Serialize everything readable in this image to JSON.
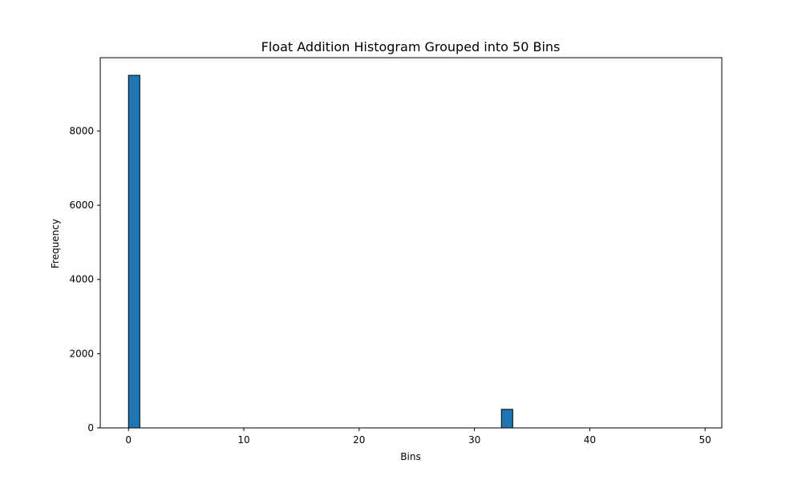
{
  "chart_data": {
    "type": "bar",
    "title": "Float Addition Histogram Grouped into 50 Bins",
    "xlabel": "Bins",
    "ylabel": "Frequency",
    "xlim": [
      -2.45,
      51.45
    ],
    "ylim": [
      0,
      9975
    ],
    "xticks": [
      0,
      10,
      20,
      30,
      40,
      50
    ],
    "yticks": [
      0,
      2000,
      4000,
      6000,
      8000
    ],
    "bin_edges": [
      0,
      0.98,
      1.96,
      2.94,
      3.92,
      4.9,
      5.88,
      6.86,
      7.84,
      8.82,
      9.8,
      10.78,
      11.76,
      12.74,
      13.72,
      14.7,
      15.68,
      16.66,
      17.64,
      18.62,
      19.6,
      20.58,
      21.56,
      22.54,
      23.52,
      24.5,
      25.48,
      26.46,
      27.44,
      28.42,
      29.4,
      30.38,
      31.36,
      32.34,
      33.32,
      34.3,
      35.28,
      36.26,
      37.24,
      38.22,
      39.2,
      40.18,
      41.16,
      42.14,
      43.12,
      44.1,
      45.08,
      46.06,
      47.04,
      48.02,
      49.0
    ],
    "values": [
      9500,
      0,
      0,
      0,
      0,
      0,
      0,
      0,
      0,
      0,
      0,
      0,
      0,
      0,
      0,
      0,
      0,
      0,
      0,
      0,
      0,
      0,
      0,
      0,
      0,
      0,
      0,
      0,
      0,
      0,
      0,
      0,
      0,
      500,
      0,
      0,
      0,
      0,
      0,
      0,
      0,
      0,
      0,
      0,
      0,
      0,
      0,
      0,
      0,
      0
    ],
    "bar_color": "#1f77b4",
    "edge_color": "#000000",
    "grid": false,
    "legend": "none"
  }
}
